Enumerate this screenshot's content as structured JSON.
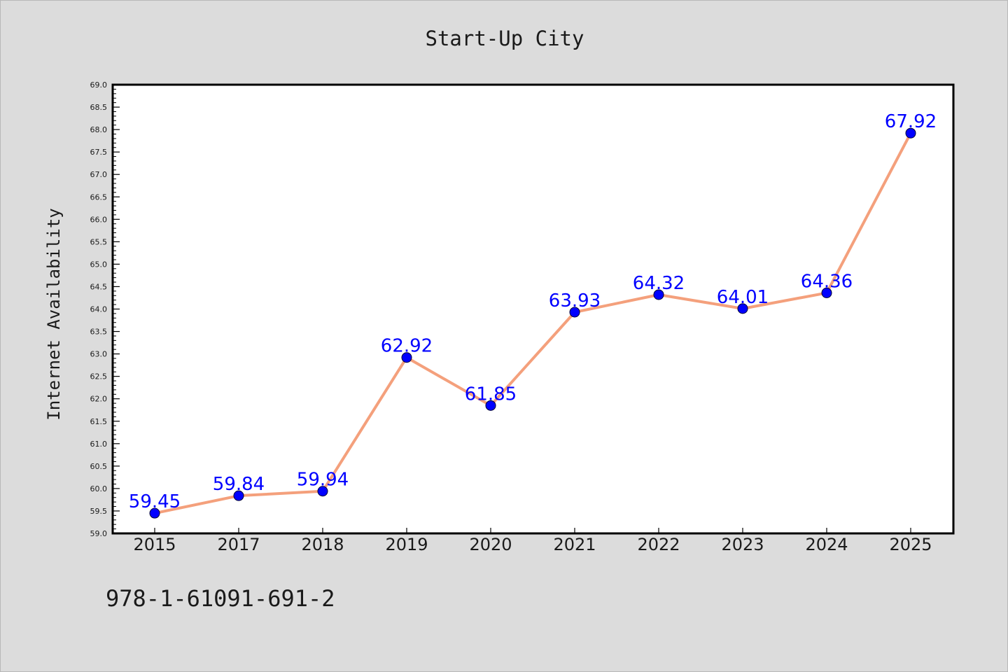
{
  "chart_data": {
    "type": "line",
    "title": "Start-Up City",
    "xlabel": "",
    "ylabel": "Internet Availability",
    "categories": [
      "2015",
      "2017",
      "2018",
      "2019",
      "2020",
      "2021",
      "2022",
      "2023",
      "2024",
      "2025"
    ],
    "series": [
      {
        "values": [
          59.45,
          59.84,
          59.94,
          62.92,
          61.85,
          63.93,
          64.32,
          64.01,
          64.36,
          67.92
        ],
        "labels": [
          "59.45",
          "59.84",
          "59.94",
          "62.92",
          "61.85",
          "63.93",
          "64.32",
          "64.01",
          "64.36",
          "67.92"
        ],
        "line_color": "#f4a07c",
        "marker_color": "#0000ff",
        "label_color": "#0000ff"
      }
    ],
    "ylim": [
      59.0,
      69.0
    ],
    "yticks": [
      "59.0",
      "59.5",
      "60.0",
      "60.5",
      "61.0",
      "61.5",
      "62.0",
      "62.5",
      "63.0",
      "63.5",
      "64.0",
      "64.5",
      "65.0",
      "65.5",
      "66.0",
      "66.5",
      "67.0",
      "67.5",
      "68.0",
      "68.5",
      "69.0"
    ],
    "grid": false,
    "legend": "none",
    "background": "#ffffff",
    "figure_background": "#dcdcdc"
  },
  "footer": {
    "isbn": "978-1-61091-691-2"
  }
}
